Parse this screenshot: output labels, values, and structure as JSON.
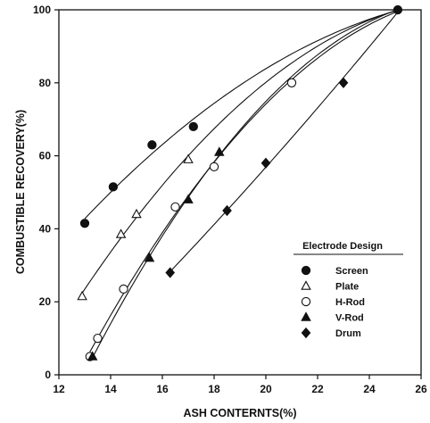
{
  "chart_data": {
    "type": "scatter",
    "xlabel": "ASH CONTERNTS(%)",
    "ylabel": "COMBUSTIBLE RECOVERY(%)",
    "xlim": [
      12,
      26
    ],
    "ylim": [
      0,
      100
    ],
    "xticks": [
      "12",
      "14",
      "16",
      "18",
      "20",
      "22",
      "24",
      "26"
    ],
    "yticks": [
      "0",
      "20",
      "40",
      "60",
      "80",
      "100"
    ],
    "grid": false,
    "legend": {
      "title": "Electrode Design",
      "placement": "bottom-right"
    },
    "series": [
      {
        "name": "Screen",
        "marker": "filled-circle",
        "points": [
          [
            13.0,
            41.5
          ],
          [
            14.1,
            51.5
          ],
          [
            15.6,
            63.0
          ],
          [
            17.2,
            68.0
          ],
          [
            25.1,
            100.0
          ]
        ]
      },
      {
        "name": "Plate",
        "marker": "open-triangle",
        "points": [
          [
            12.9,
            21.5
          ],
          [
            14.4,
            38.5
          ],
          [
            15.0,
            44.0
          ],
          [
            17.0,
            59.0
          ]
        ]
      },
      {
        "name": "H-Rod",
        "marker": "open-circle",
        "points": [
          [
            13.2,
            5.0
          ],
          [
            13.5,
            10.0
          ],
          [
            14.5,
            23.5
          ],
          [
            16.5,
            46.0
          ],
          [
            18.0,
            57.0
          ],
          [
            21.0,
            80.0
          ]
        ]
      },
      {
        "name": "V-Rod",
        "marker": "filled-triangle",
        "points": [
          [
            13.3,
            5.0
          ],
          [
            15.5,
            32.0
          ],
          [
            17.0,
            48.0
          ],
          [
            18.2,
            61.0
          ]
        ]
      },
      {
        "name": "Drum",
        "marker": "filled-diamond",
        "points": [
          [
            16.3,
            28.0
          ],
          [
            18.5,
            45.0
          ],
          [
            20.0,
            58.0
          ],
          [
            23.0,
            80.0
          ]
        ]
      }
    ]
  }
}
